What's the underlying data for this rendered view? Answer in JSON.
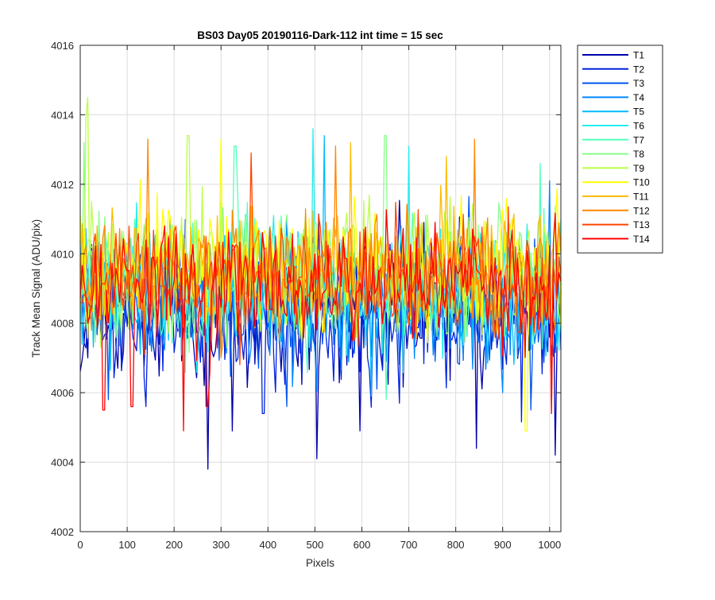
{
  "chart_data": {
    "type": "line",
    "title": "BS03 Day05 20190116-Dark-112 int time = 15 sec",
    "xlabel": "Pixels",
    "ylabel": "Track Mean Signal (ADU/pix)",
    "xlim": [
      0,
      1024
    ],
    "ylim": [
      4002,
      4016
    ],
    "xticks": [
      0,
      100,
      200,
      300,
      400,
      500,
      600,
      700,
      800,
      900,
      1000
    ],
    "yticks": [
      4002,
      4004,
      4006,
      4008,
      4010,
      4012,
      4014,
      4016
    ],
    "grid": true,
    "legend_position": "outside-top-right",
    "x_sample_step": 4,
    "series": [
      {
        "name": "T1",
        "color": "#0000AA",
        "mean": 4008.2,
        "spread": 0.95,
        "extremes": [
          [
            17,
            4007.0
          ],
          [
            273,
            4003.8
          ],
          [
            325,
            4004.9
          ],
          [
            505,
            4004.1
          ],
          [
            595,
            4004.9
          ],
          [
            843,
            4004.4
          ],
          [
            1012,
            4004.2
          ]
        ]
      },
      {
        "name": "T2",
        "color": "#0022DD",
        "mean": 4008.3,
        "spread": 0.9,
        "extremes": [
          [
            140,
            4005.6
          ],
          [
            390,
            4005.4
          ],
          [
            680,
            4005.7
          ]
        ]
      },
      {
        "name": "T3",
        "color": "#0055EE",
        "mean": 4008.5,
        "spread": 0.85,
        "extremes": [
          [
            60,
            4005.8
          ],
          [
            440,
            4005.6
          ],
          [
            960,
            4005.5
          ]
        ]
      },
      {
        "name": "T4",
        "color": "#0088FF",
        "mean": 4008.7,
        "spread": 0.85,
        "extremes": [
          [
            1000,
            4012.1
          ],
          [
            900,
            4006.0
          ]
        ]
      },
      {
        "name": "T5",
        "color": "#00BBFF",
        "mean": 4008.9,
        "spread": 0.85,
        "extremes": [
          [
            520,
            4013.4
          ],
          [
            620,
            4005.9
          ]
        ]
      },
      {
        "name": "T6",
        "color": "#22EEEE",
        "mean": 4009.1,
        "spread": 0.85,
        "extremes": [
          [
            495,
            4013.6
          ],
          [
            700,
            4013.1
          ]
        ]
      },
      {
        "name": "T7",
        "color": "#55FFBB",
        "mean": 4009.2,
        "spread": 0.85,
        "extremes": [
          [
            330,
            4013.1
          ],
          [
            980,
            4012.6
          ]
        ]
      },
      {
        "name": "T8",
        "color": "#88FF88",
        "mean": 4009.4,
        "spread": 0.85,
        "extremes": [
          [
            8,
            4013.2
          ],
          [
            650,
            4013.4
          ]
        ]
      },
      {
        "name": "T9",
        "color": "#BBFF44",
        "mean": 4009.6,
        "spread": 0.85,
        "extremes": [
          [
            17,
            4014.5
          ],
          [
            12,
            4013.9
          ],
          [
            230,
            4013.4
          ]
        ]
      },
      {
        "name": "T10",
        "color": "#FFFF00",
        "mean": 4009.7,
        "spread": 0.85,
        "extremes": [
          [
            300,
            4013.3
          ],
          [
            950,
            4004.9
          ]
        ]
      },
      {
        "name": "T11",
        "color": "#FFBB00",
        "mean": 4009.6,
        "spread": 0.85,
        "extremes": [
          [
            575,
            4013.2
          ],
          [
            780,
            4012.8
          ]
        ]
      },
      {
        "name": "T12",
        "color": "#FF8800",
        "mean": 4009.4,
        "spread": 0.85,
        "extremes": [
          [
            143,
            4013.3
          ],
          [
            840,
            4013.3
          ],
          [
            545,
            4013.1
          ]
        ]
      },
      {
        "name": "T13",
        "color": "#FF4400",
        "mean": 4009.2,
        "spread": 0.85,
        "extremes": [
          [
            365,
            4012.9
          ],
          [
            1005,
            4005.5
          ]
        ]
      },
      {
        "name": "T14",
        "color": "#FF0000",
        "mean": 4009.0,
        "spread": 0.85,
        "extremes": [
          [
            50,
            4005.5
          ],
          [
            110,
            4005.6
          ],
          [
            220,
            4004.9
          ],
          [
            270,
            4005.6
          ],
          [
            1005,
            4005.4
          ]
        ]
      }
    ]
  }
}
